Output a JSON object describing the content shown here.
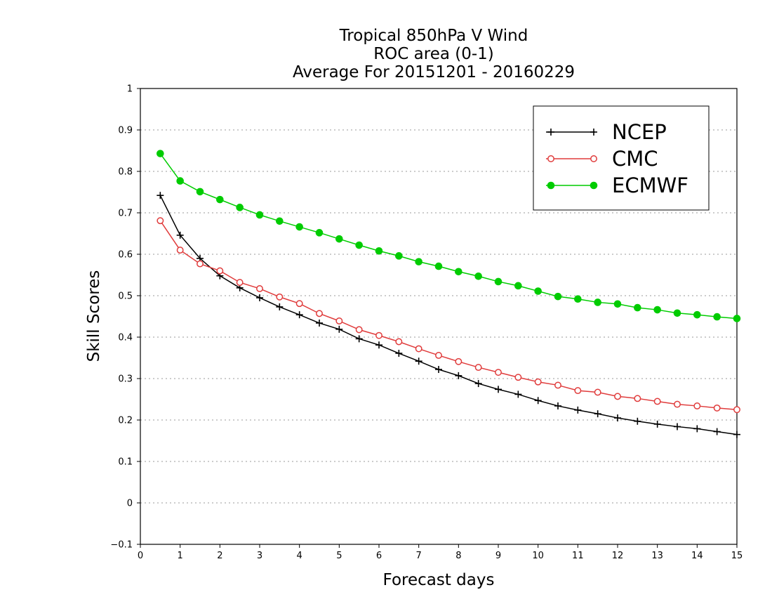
{
  "chart_data": {
    "type": "line",
    "title": "Tropical 850hPa V Wind",
    "subtitle": [
      "ROC area (0-1)",
      "Average For 20151201 - 20160229"
    ],
    "xlabel": "Forecast days",
    "ylabel": "Skill Scores",
    "xlim": [
      0,
      15
    ],
    "ylim": [
      -0.1,
      1
    ],
    "x_ticks": [
      "0",
      "1",
      "2",
      "3",
      "4",
      "5",
      "6",
      "7",
      "8",
      "9",
      "10",
      "11",
      "12",
      "13",
      "14",
      "15"
    ],
    "y_ticks": [
      "−0.1",
      "0",
      "0.1",
      "0.2",
      "0.3",
      "0.4",
      "0.5",
      "0.6",
      "0.7",
      "0.8",
      "0.9",
      "1"
    ],
    "grid": true,
    "legend_position": "top-right",
    "x": [
      0.5,
      1,
      1.5,
      2,
      2.5,
      3,
      3.5,
      4,
      4.5,
      5,
      5.5,
      6,
      6.5,
      7,
      7.5,
      8,
      8.5,
      9,
      9.5,
      10,
      10.5,
      11,
      11.5,
      12,
      12.5,
      13,
      13.5,
      14,
      14.5,
      15
    ],
    "series": [
      {
        "name": "NCEP",
        "color": "#000000",
        "marker": "plus",
        "values": [
          0.742,
          0.646,
          0.59,
          0.548,
          0.519,
          0.495,
          0.473,
          0.454,
          0.434,
          0.419,
          0.396,
          0.381,
          0.361,
          0.342,
          0.322,
          0.307,
          0.288,
          0.274,
          0.262,
          0.247,
          0.234,
          0.224,
          0.215,
          0.205,
          0.197,
          0.19,
          0.184,
          0.179,
          0.172,
          0.165
        ]
      },
      {
        "name": "CMC",
        "color": "#e03c3c",
        "marker": "open-circle",
        "values": [
          0.681,
          0.61,
          0.577,
          0.56,
          0.532,
          0.517,
          0.497,
          0.481,
          0.457,
          0.439,
          0.418,
          0.404,
          0.389,
          0.372,
          0.356,
          0.341,
          0.327,
          0.315,
          0.303,
          0.292,
          0.284,
          0.271,
          0.267,
          0.257,
          0.252,
          0.245,
          0.238,
          0.234,
          0.229,
          0.225
        ]
      },
      {
        "name": "ECMWF",
        "color": "#00cc00",
        "marker": "filled-circle",
        "values": [
          0.843,
          0.777,
          0.751,
          0.732,
          0.713,
          0.695,
          0.68,
          0.666,
          0.652,
          0.637,
          0.622,
          0.608,
          0.596,
          0.582,
          0.571,
          0.558,
          0.547,
          0.534,
          0.524,
          0.511,
          0.498,
          0.492,
          0.484,
          0.48,
          0.471,
          0.466,
          0.458,
          0.454,
          0.449,
          0.445
        ]
      }
    ]
  }
}
